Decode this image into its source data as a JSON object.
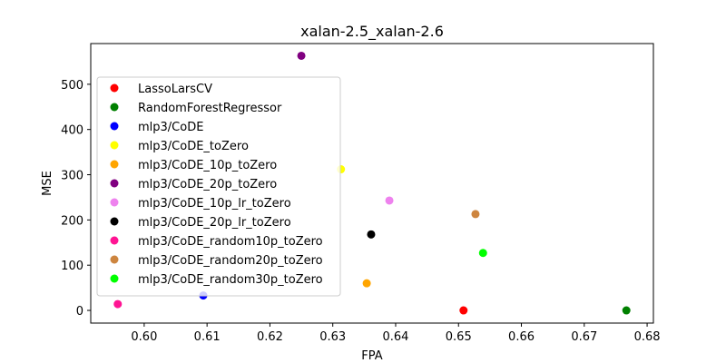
{
  "chart_data": {
    "type": "scatter",
    "title": "xalan-2.5_xalan-2.6",
    "xlabel": "FPA",
    "ylabel": "MSE",
    "xlim": [
      0.5915,
      0.681
    ],
    "ylim": [
      -28,
      590
    ],
    "xticks": [
      "0.60",
      "0.61",
      "0.62",
      "0.63",
      "0.64",
      "0.65",
      "0.66",
      "0.67",
      "0.68"
    ],
    "xtick_values": [
      0.6,
      0.61,
      0.62,
      0.63,
      0.64,
      0.65,
      0.66,
      0.67,
      0.68
    ],
    "yticks": [
      "0",
      "100",
      "200",
      "300",
      "400",
      "500"
    ],
    "ytick_values": [
      0,
      100,
      200,
      300,
      400,
      500
    ],
    "grid": false,
    "legend_position": "upper-left",
    "series": [
      {
        "name": "LassoLarsCV",
        "color": "#ff0000",
        "x": 0.6508,
        "y": 0
      },
      {
        "name": "RandomForestRegressor",
        "color": "#008000",
        "x": 0.6767,
        "y": 0
      },
      {
        "name": "mlp3/CoDE",
        "color": "#0000ff",
        "x": 0.6094,
        "y": 33
      },
      {
        "name": "mlp3/CoDE_toZero",
        "color": "#ffff00",
        "x": 0.6313,
        "y": 312
      },
      {
        "name": "mlp3/CoDE_10p_toZero",
        "color": "#ffa500",
        "x": 0.6354,
        "y": 60
      },
      {
        "name": "mlp3/CoDE_20p_toZero",
        "color": "#800080",
        "x": 0.625,
        "y": 563
      },
      {
        "name": "mlp3/CoDE_10p_lr_toZero",
        "color": "#ee82ee",
        "x": 0.639,
        "y": 243
      },
      {
        "name": "mlp3/CoDE_20p_lr_toZero",
        "color": "#000000",
        "x": 0.6361,
        "y": 168
      },
      {
        "name": "mlp3/CoDE_random10p_toZero",
        "color": "#ff1493",
        "x": 0.5958,
        "y": 14
      },
      {
        "name": "mlp3/CoDE_random20p_toZero",
        "color": "#cd853f",
        "x": 0.6527,
        "y": 213
      },
      {
        "name": "mlp3/CoDE_random30p_toZero",
        "color": "#00ff00",
        "x": 0.6539,
        "y": 127
      }
    ]
  }
}
